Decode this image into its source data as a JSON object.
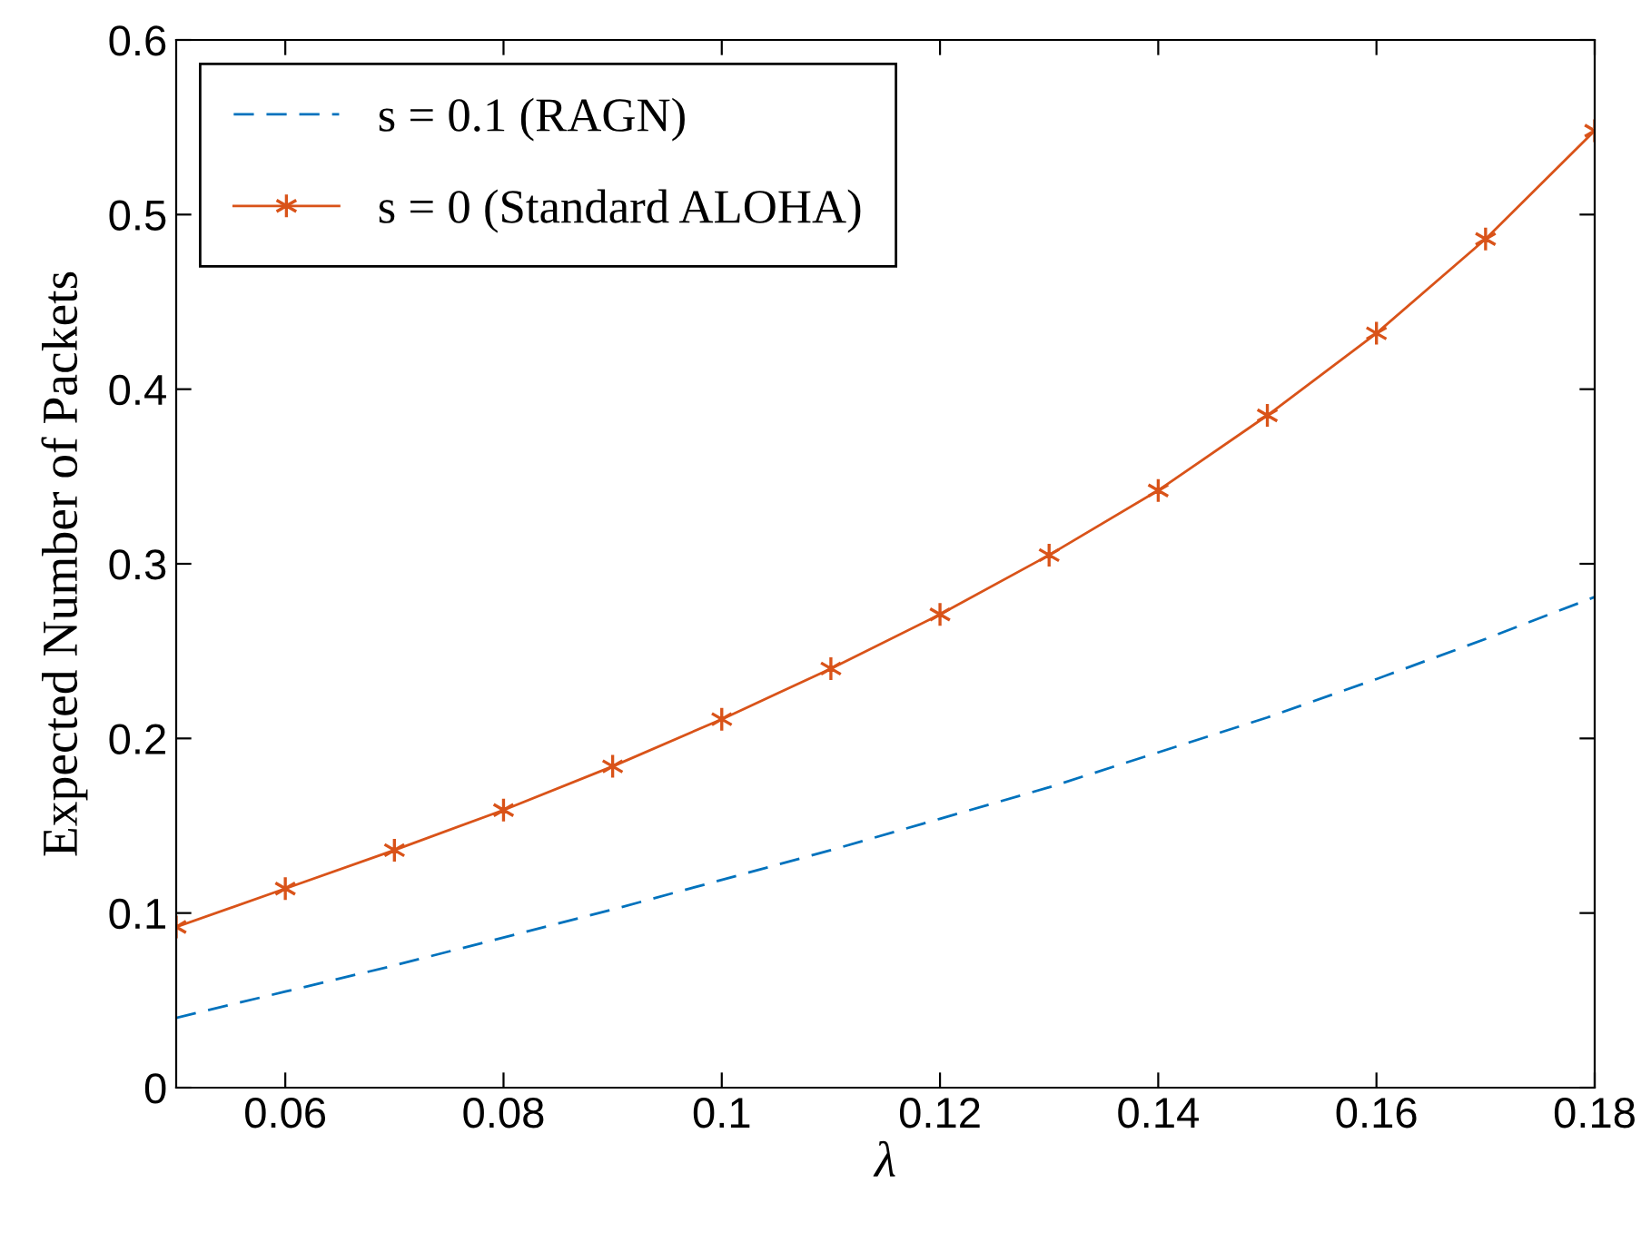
{
  "chart_data": {
    "type": "line",
    "xlabel": "λ",
    "ylabel": "Expected Number of Packets",
    "x": [
      0.05,
      0.06,
      0.07,
      0.08,
      0.09,
      0.1,
      0.11,
      0.12,
      0.13,
      0.14,
      0.15,
      0.16,
      0.17,
      0.18
    ],
    "series": [
      {
        "name": "s = 0.1 (RAGN)",
        "color": "#0072bd",
        "line_style": "dashed",
        "marker": "none",
        "values": [
          0.04,
          0.055,
          0.07,
          0.086,
          0.102,
          0.119,
          0.136,
          0.154,
          0.172,
          0.192,
          0.212,
          0.234,
          0.257,
          0.281
        ]
      },
      {
        "name": "s = 0 (Standard ALOHA)",
        "color": "#d95319",
        "line_style": "solid",
        "marker": "cross",
        "values": [
          0.092,
          0.114,
          0.136,
          0.159,
          0.184,
          0.211,
          0.24,
          0.271,
          0.305,
          0.342,
          0.385,
          0.432,
          0.486,
          0.548
        ]
      }
    ],
    "xlim": [
      0.05,
      0.18
    ],
    "xticks": [
      {
        "value": 0.06,
        "label": "0.06"
      },
      {
        "value": 0.08,
        "label": "0.08"
      },
      {
        "value": 0.1,
        "label": "0.1"
      },
      {
        "value": 0.12,
        "label": "0.12"
      },
      {
        "value": 0.14,
        "label": "0.14"
      },
      {
        "value": 0.16,
        "label": "0.16"
      },
      {
        "value": 0.18,
        "label": "0.18"
      }
    ],
    "ylim": [
      0,
      0.6
    ],
    "yticks": [
      0,
      0.1,
      0.2,
      0.3,
      0.4,
      0.5,
      0.6
    ],
    "grid": false,
    "legend": "top left"
  }
}
